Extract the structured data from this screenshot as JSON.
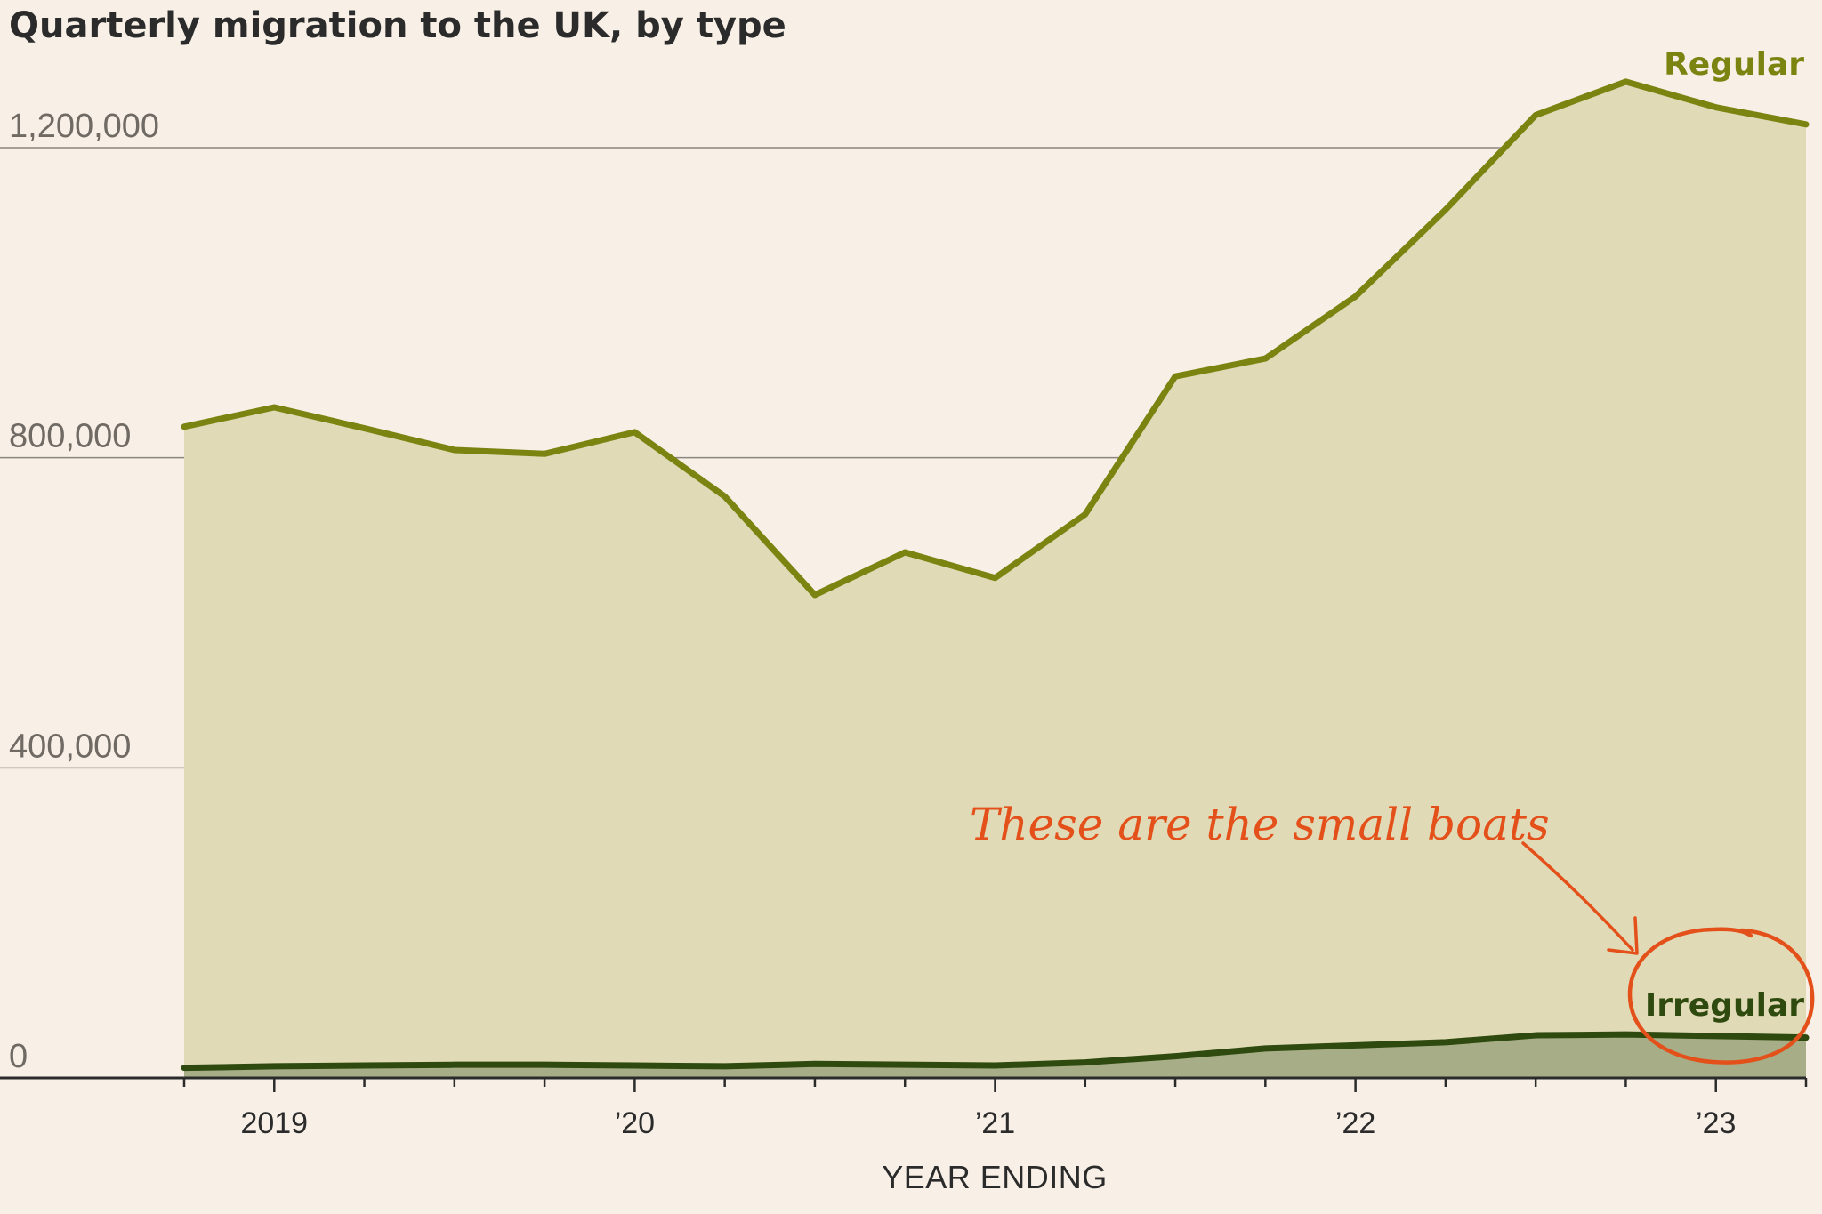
{
  "chart_data": {
    "type": "area",
    "title": "Quarterly migration to the UK, by type",
    "xlabel": "YEAR ENDING",
    "ylabel": "",
    "ylim": [
      0,
      1300000
    ],
    "yticks": [
      {
        "value": 0,
        "label": "0"
      },
      {
        "value": 400000,
        "label": "400,000"
      },
      {
        "value": 800000,
        "label": "800,000"
      },
      {
        "value": 1200000,
        "label": "1,200,000"
      }
    ],
    "x": [
      "2018-Q3",
      "2018-Q4",
      "2019-Q1",
      "2019-Q2",
      "2019-Q3",
      "2019-Q4",
      "2020-Q1",
      "2020-Q2",
      "2020-Q3",
      "2020-Q4",
      "2021-Q1",
      "2021-Q2",
      "2021-Q3",
      "2021-Q4",
      "2022-Q1",
      "2022-Q2",
      "2022-Q3",
      "2022-Q4",
      "2023-Q1"
    ],
    "xticks_major": [
      {
        "index": 1,
        "label": "2019"
      },
      {
        "index": 5,
        "label": "’20"
      },
      {
        "index": 9,
        "label": "’21"
      },
      {
        "index": 13,
        "label": "’22"
      },
      {
        "index": 17,
        "label": "’23"
      }
    ],
    "series": [
      {
        "name": "Regular",
        "color": "#7b8411",
        "fill": "#e1dab7",
        "values": [
          840000,
          865000,
          838000,
          810000,
          805000,
          833000,
          750000,
          623000,
          678000,
          645000,
          727000,
          905000,
          928000,
          1008000,
          1120000,
          1242000,
          1285000,
          1252000,
          1230000
        ]
      },
      {
        "name": "Irregular",
        "color": "#2f4a0e",
        "fill": "#a6ad87",
        "values": [
          13000,
          15000,
          16000,
          17000,
          17000,
          16000,
          15000,
          18000,
          17000,
          16000,
          20000,
          28000,
          38000,
          42000,
          46000,
          55000,
          56000,
          54000,
          52000
        ]
      }
    ],
    "annotation": {
      "text": "These are the small boats",
      "color": "#e4501a"
    },
    "grid": true,
    "legend": "inline-labels"
  }
}
